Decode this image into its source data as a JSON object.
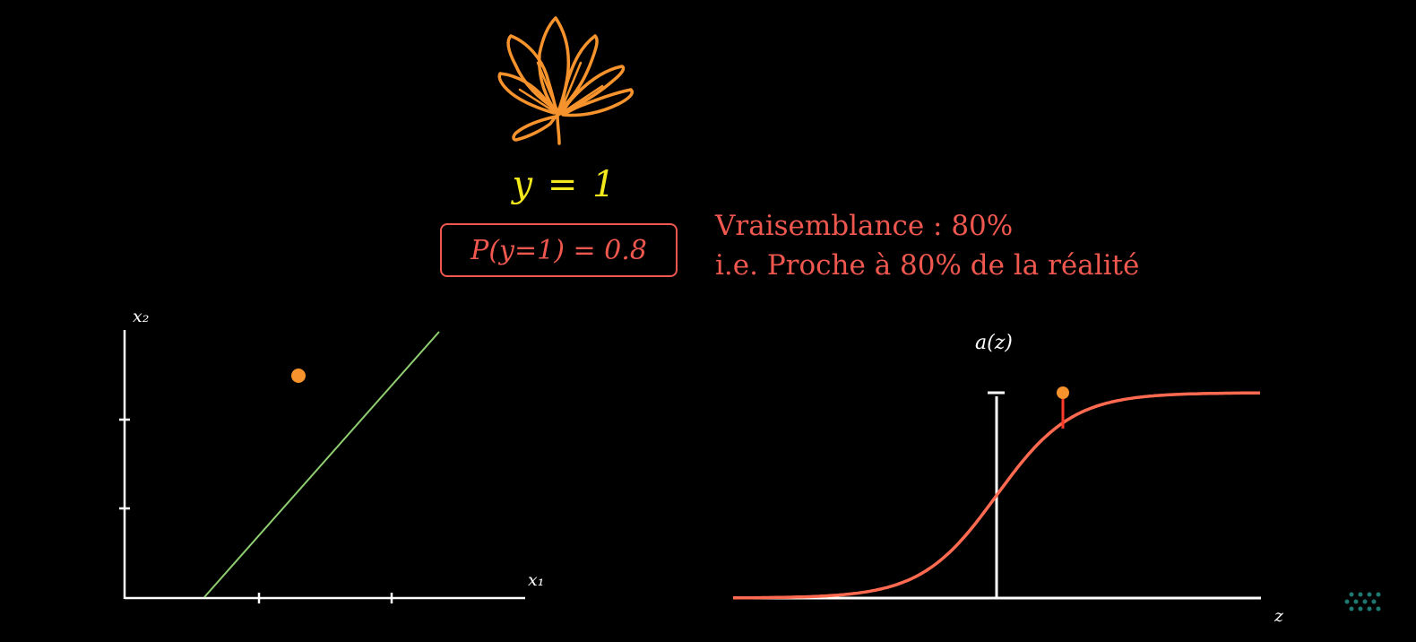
{
  "label": {
    "y_equation": "y = 1",
    "probability": "P(y=1) = 0.8"
  },
  "caption": {
    "line1": "Vraisemblance : 80%",
    "line2": "i.e. Proche à 80% de la réalité"
  },
  "left_plot": {
    "x_label": "x₁",
    "y_label": "x₂"
  },
  "right_plot": {
    "x_label": "z",
    "y_label": "a(z)"
  },
  "colors": {
    "leaf": "#f7932c",
    "y_label": "#f2e81b",
    "probability": "#f0584f",
    "boundary_line": "#8fcf72",
    "point": "#f7932c",
    "sigmoid": "#ff6a50",
    "axes": "#ffffff"
  },
  "icons": {
    "leaf": "maple-leaf-icon",
    "watermark": "dot-grid-logo-icon"
  }
}
